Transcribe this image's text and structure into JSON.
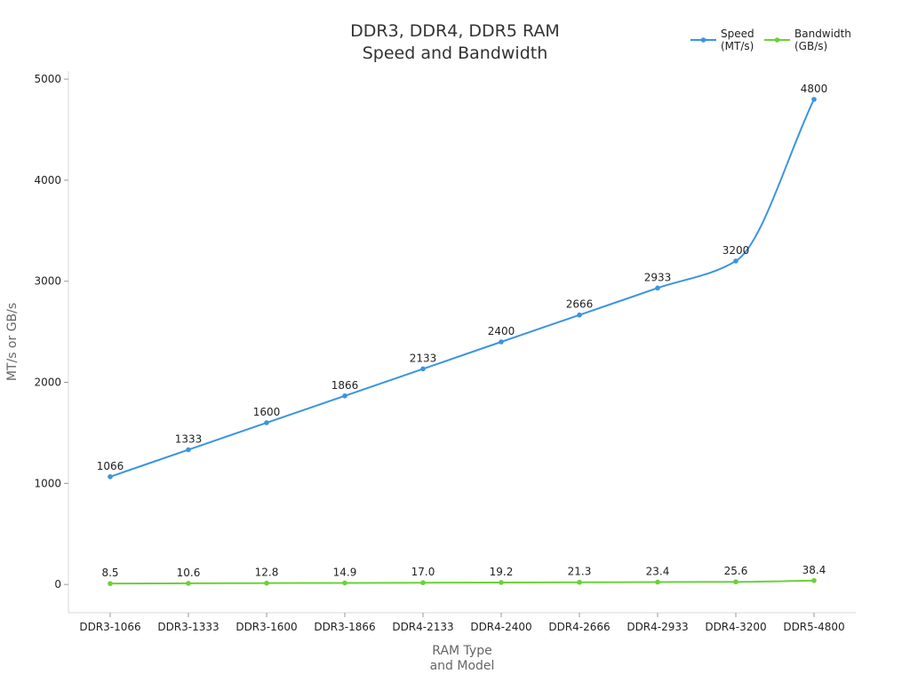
{
  "chart_data": {
    "type": "line",
    "title": [
      "DDR3, DDR4, DDR5 RAM",
      "Speed and Bandwidth"
    ],
    "xlabel": [
      "RAM Type",
      "and Model"
    ],
    "ylabel": "MT/s or GB/s",
    "categories": [
      "DDR3-1066",
      "DDR3-1333",
      "DDR3-1600",
      "DDR3-1866",
      "DDR4-2133",
      "DDR4-2400",
      "DDR4-2666",
      "DDR4-2933",
      "DDR4-3200",
      "DDR5-4800"
    ],
    "ylim": [
      -280,
      5080
    ],
    "yticks": [
      0,
      1000,
      2000,
      3000,
      4000,
      5000
    ],
    "legend_position": "top-right",
    "grid": false,
    "series": [
      {
        "name": [
          "Speed",
          "(MT/s)"
        ],
        "color": "#3b94e1",
        "values": [
          1066,
          1333,
          1600,
          1866,
          2133,
          2400,
          2666,
          2933,
          3200,
          4800
        ],
        "labels": [
          "1066",
          "1333",
          "1600",
          "1866",
          "2133",
          "2400",
          "2666",
          "2933",
          "3200",
          "4800"
        ]
      },
      {
        "name": [
          "Bandwidth",
          "(GB/s)"
        ],
        "color": "#6ad138",
        "values": [
          8.5,
          10.6,
          12.8,
          14.9,
          17.0,
          19.2,
          21.3,
          23.4,
          25.6,
          38.4
        ],
        "labels": [
          "8.5",
          "10.6",
          "12.8",
          "14.9",
          "17.0",
          "19.2",
          "21.3",
          "23.4",
          "25.6",
          "38.4"
        ]
      }
    ]
  }
}
